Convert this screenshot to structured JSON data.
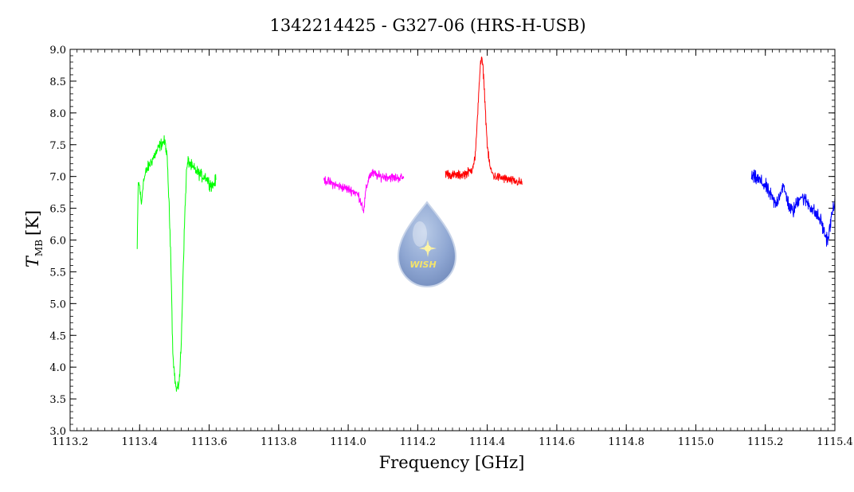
{
  "chart_data": {
    "type": "line",
    "title": "1342214425 - G327-06 (HRS-H-USB)",
    "xlabel": "Frequency [GHz]",
    "ylabel_main": "T",
    "ylabel_sub": "MB",
    "ylabel_unit": "[K]",
    "xlim": [
      1113.2,
      1115.4
    ],
    "ylim": [
      3.0,
      9.0
    ],
    "xticks": [
      "1113.2",
      "1113.4",
      "1113.6",
      "1113.8",
      "1114.0",
      "1114.2",
      "1114.4",
      "1114.6",
      "1114.8",
      "1115.0",
      "1115.2",
      "1115.4"
    ],
    "yticks": [
      "3.0",
      "3.5",
      "4.0",
      "4.5",
      "5.0",
      "5.5",
      "6.0",
      "6.5",
      "7.0",
      "7.5",
      "8.0",
      "8.5",
      "9.0"
    ],
    "grid": false,
    "logo": {
      "text": "WISH",
      "icon": "water-drop-star-icon"
    },
    "series": [
      {
        "color": "#00ff00",
        "x": [
          1113.393,
          1113.396,
          1113.4,
          1113.405,
          1113.41,
          1113.42,
          1113.43,
          1113.44,
          1113.45,
          1113.46,
          1113.47,
          1113.475,
          1113.48,
          1113.485,
          1113.49,
          1113.495,
          1113.5,
          1113.505,
          1113.51,
          1113.515,
          1113.52,
          1113.525,
          1113.53,
          1113.535,
          1113.54,
          1113.545,
          1113.55,
          1113.56,
          1113.57,
          1113.58,
          1113.59,
          1113.6,
          1113.61,
          1113.62
        ],
        "y": [
          5.85,
          6.9,
          6.85,
          6.55,
          6.9,
          7.1,
          7.2,
          7.3,
          7.4,
          7.5,
          7.55,
          7.5,
          7.2,
          6.5,
          5.7,
          4.3,
          3.9,
          3.65,
          3.65,
          3.85,
          4.4,
          5.5,
          6.4,
          7.1,
          7.25,
          7.2,
          7.15,
          7.1,
          7.05,
          7.0,
          7.0,
          6.9,
          6.85,
          6.95
        ],
        "noise": 0.09
      },
      {
        "color": "#ff00ff",
        "x": [
          1113.93,
          1113.95,
          1113.97,
          1113.99,
          1114.01,
          1114.02,
          1114.03,
          1114.04,
          1114.045,
          1114.05,
          1114.06,
          1114.07,
          1114.09,
          1114.11,
          1114.13,
          1114.16
        ],
        "y": [
          6.95,
          6.9,
          6.85,
          6.82,
          6.78,
          6.75,
          6.7,
          6.55,
          6.45,
          6.75,
          7.0,
          7.05,
          7.0,
          7.0,
          6.98,
          6.98
        ],
        "noise": 0.07
      },
      {
        "color": "#ff0000",
        "x": [
          1114.28,
          1114.3,
          1114.32,
          1114.34,
          1114.355,
          1114.365,
          1114.37,
          1114.375,
          1114.38,
          1114.385,
          1114.39,
          1114.395,
          1114.4,
          1114.405,
          1114.41,
          1114.42,
          1114.44,
          1114.46,
          1114.48,
          1114.5
        ],
        "y": [
          7.05,
          7.02,
          7.02,
          7.05,
          7.1,
          7.3,
          7.7,
          8.3,
          8.75,
          8.85,
          8.55,
          8.0,
          7.5,
          7.25,
          7.1,
          7.0,
          6.98,
          6.95,
          6.92,
          6.9
        ],
        "noise": 0.07
      },
      {
        "color": "#0000ff",
        "x": [
          1115.16,
          1115.18,
          1115.2,
          1115.22,
          1115.23,
          1115.24,
          1115.25,
          1115.26,
          1115.27,
          1115.28,
          1115.3,
          1115.32,
          1115.34,
          1115.36,
          1115.37,
          1115.38,
          1115.39,
          1115.4
        ],
        "y": [
          7.0,
          6.95,
          6.85,
          6.65,
          6.55,
          6.7,
          6.85,
          6.7,
          6.5,
          6.45,
          6.7,
          6.6,
          6.45,
          6.3,
          6.1,
          6.0,
          6.35,
          6.65
        ],
        "noise": 0.11
      }
    ]
  }
}
